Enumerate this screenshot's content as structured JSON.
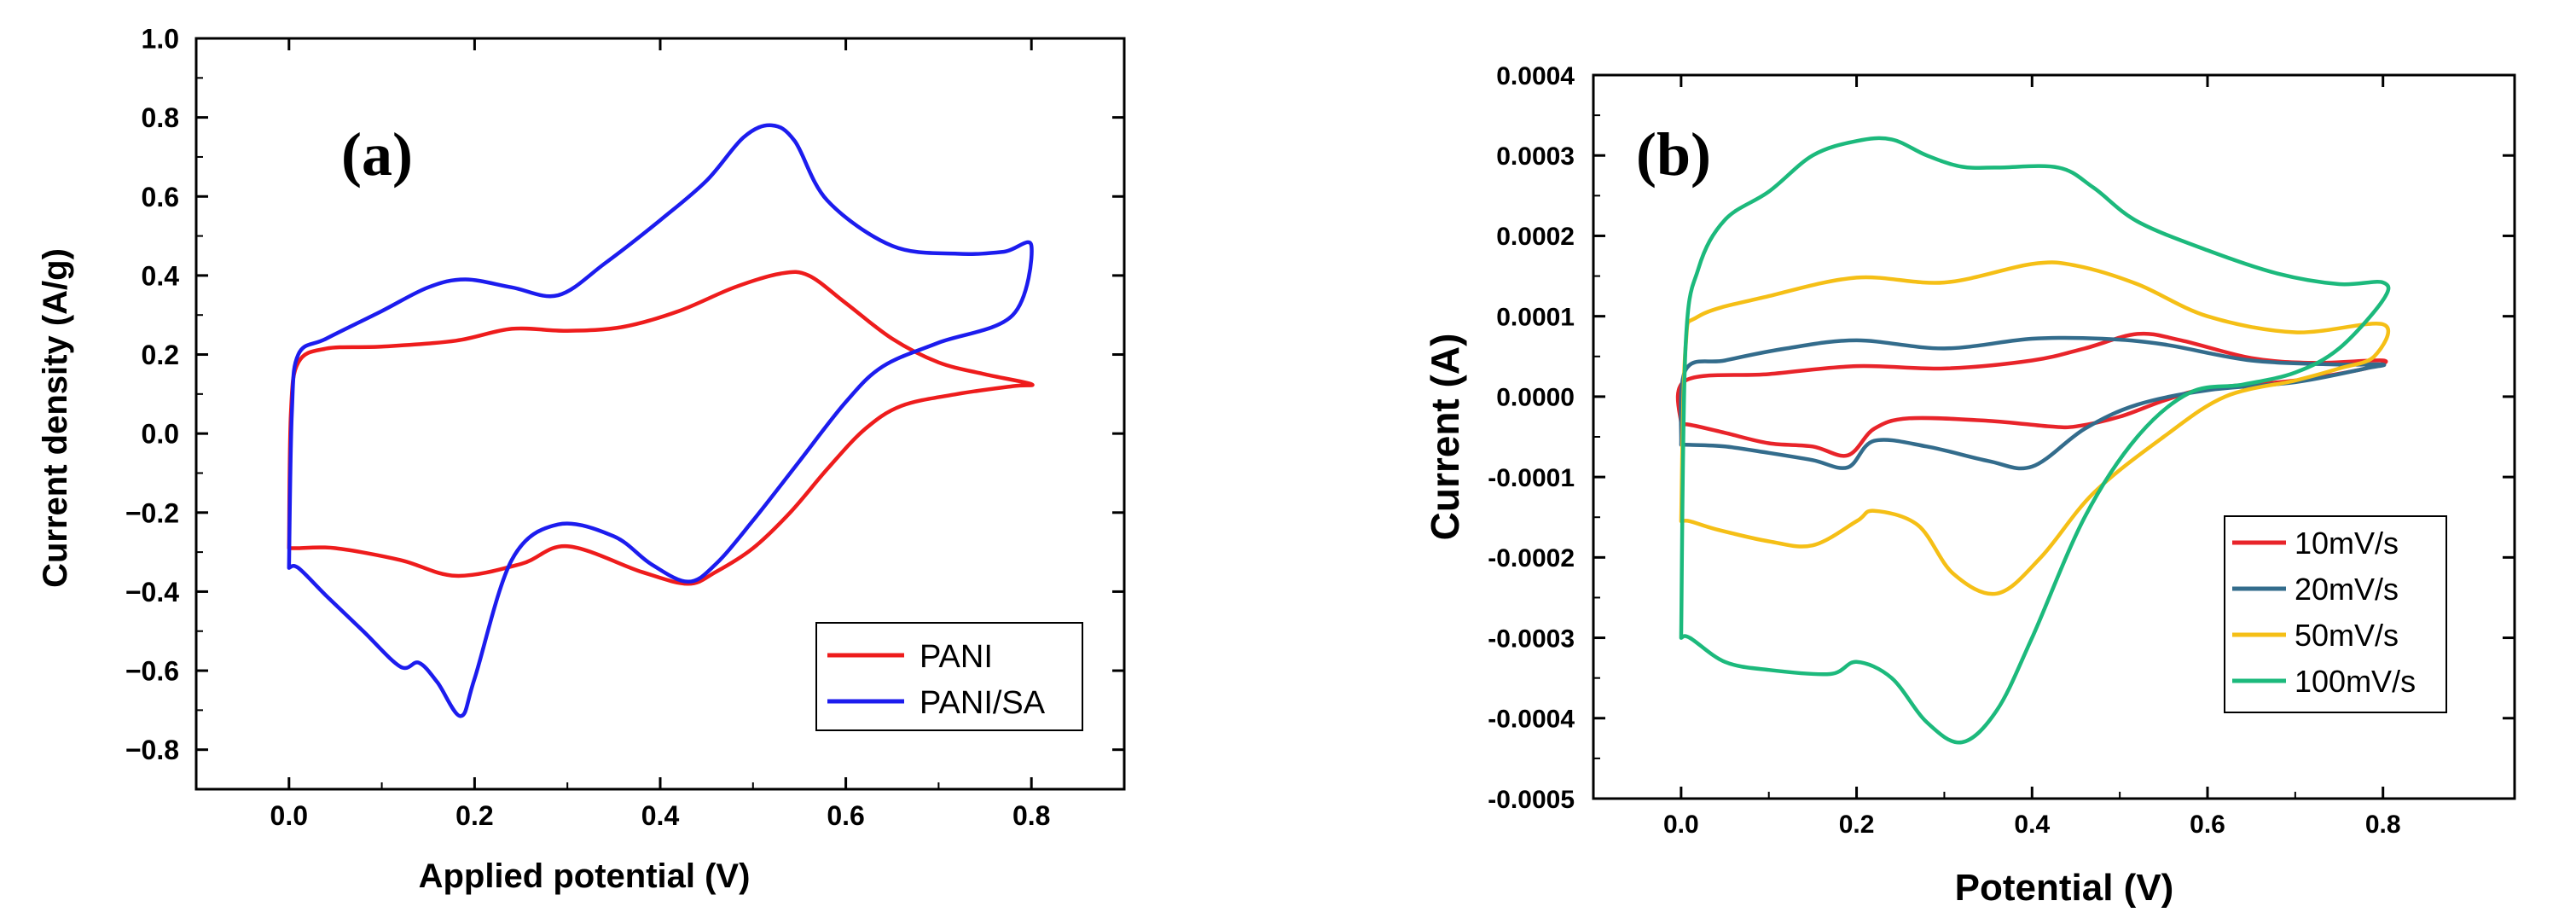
{
  "chart_data": [
    {
      "type": "line",
      "panel_label": "(a)",
      "title": "",
      "xlabel": "Applied potential (V)",
      "ylabel": "Current density (A/g)",
      "xlim": [
        -0.1,
        0.9
      ],
      "ylim": [
        -0.9,
        1.0
      ],
      "xticks": [
        0.0,
        0.2,
        0.4,
        0.6,
        0.8
      ],
      "xtick_labels": [
        "0.0",
        "0.2",
        "0.4",
        "0.6",
        "0.8"
      ],
      "yticks": [
        -0.8,
        -0.6,
        -0.4,
        -0.2,
        0.0,
        0.2,
        0.4,
        0.6,
        0.8,
        1.0
      ],
      "ytick_labels": [
        "−0.8",
        "−0.6",
        "−0.4",
        "−0.2",
        "0.0",
        "0.2",
        "0.4",
        "0.6",
        "0.8",
        "1.0"
      ],
      "legend_position": "bottom-right",
      "grid": false,
      "series": [
        {
          "name": "PANI",
          "color": "#ee1c1c",
          "x": [
            0.0,
            0.002,
            0.01,
            0.04,
            0.1,
            0.18,
            0.24,
            0.3,
            0.36,
            0.42,
            0.48,
            0.53,
            0.56,
            0.6,
            0.65,
            0.7,
            0.75,
            0.8,
            0.78,
            0.72,
            0.66,
            0.62,
            0.58,
            0.54,
            0.5,
            0.46,
            0.43,
            0.38,
            0.3,
            0.25,
            0.18,
            0.12,
            0.05,
            0.01,
            0.0
          ],
          "y": [
            -0.29,
            0.05,
            0.18,
            0.215,
            0.22,
            0.235,
            0.265,
            0.26,
            0.27,
            0.31,
            0.37,
            0.405,
            0.4,
            0.33,
            0.24,
            0.18,
            0.15,
            0.125,
            0.12,
            0.1,
            0.07,
            0.01,
            -0.09,
            -0.2,
            -0.29,
            -0.35,
            -0.38,
            -0.35,
            -0.285,
            -0.33,
            -0.36,
            -0.32,
            -0.29,
            -0.29,
            -0.29
          ]
        },
        {
          "name": "PANI/SA",
          "color": "#1c1cee",
          "x": [
            0.0,
            0.003,
            0.01,
            0.04,
            0.1,
            0.15,
            0.19,
            0.24,
            0.29,
            0.34,
            0.4,
            0.45,
            0.49,
            0.52,
            0.545,
            0.58,
            0.65,
            0.72,
            0.77,
            0.8,
            0.78,
            0.7,
            0.64,
            0.6,
            0.55,
            0.5,
            0.46,
            0.43,
            0.39,
            0.35,
            0.29,
            0.24,
            0.2,
            0.185,
            0.16,
            0.14,
            0.12,
            0.08,
            0.04,
            0.01,
            0.0
          ],
          "y": [
            -0.34,
            0.05,
            0.2,
            0.24,
            0.31,
            0.37,
            0.39,
            0.37,
            0.35,
            0.43,
            0.54,
            0.64,
            0.75,
            0.78,
            0.74,
            0.59,
            0.475,
            0.455,
            0.46,
            0.475,
            0.3,
            0.23,
            0.17,
            0.08,
            -0.07,
            -0.22,
            -0.33,
            -0.375,
            -0.33,
            -0.26,
            -0.23,
            -0.32,
            -0.62,
            -0.715,
            -0.63,
            -0.58,
            -0.59,
            -0.5,
            -0.41,
            -0.34,
            -0.34
          ]
        }
      ]
    },
    {
      "type": "line",
      "panel_label": "(b)",
      "title": "",
      "xlabel": "Potential (V)",
      "ylabel": "Current (A)",
      "xlim": [
        -0.1,
        0.95
      ],
      "ylim": [
        -0.0005,
        0.0004
      ],
      "xticks": [
        0.0,
        0.2,
        0.4,
        0.6,
        0.8
      ],
      "xtick_labels": [
        "0.0",
        "0.2",
        "0.4",
        "0.6",
        "0.8"
      ],
      "yticks": [
        -0.0005,
        -0.0004,
        -0.0003,
        -0.0002,
        -0.0001,
        0.0,
        0.0001,
        0.0002,
        0.0003,
        0.0004
      ],
      "ytick_labels": [
        "-0.0005",
        "-0.0004",
        "-0.0003",
        "-0.0002",
        "-0.0001",
        "0.0000",
        "0.0001",
        "0.0002",
        "0.0003",
        "0.0004"
      ],
      "legend_position": "bottom-right",
      "grid": false,
      "series": [
        {
          "name": "10mV/s",
          "color": "#e8242a",
          "x": [
            0.0,
            0.005,
            0.1,
            0.2,
            0.3,
            0.4,
            0.46,
            0.52,
            0.57,
            0.65,
            0.72,
            0.8,
            0.78,
            0.7,
            0.6,
            0.55,
            0.5,
            0.45,
            0.42,
            0.35,
            0.26,
            0.22,
            0.19,
            0.15,
            0.1,
            0.05,
            0.01,
            0.0
          ],
          "y": [
            -3.5e-05,
            2e-05,
            2.8e-05,
            3.8e-05,
            3.5e-05,
            4.5e-05,
            6e-05,
            7.8e-05,
            7e-05,
            4.8e-05,
            4.2e-05,
            4.5e-05,
            3.5e-05,
            2e-05,
            1e-05,
            -5e-06,
            -2.5e-05,
            -3.7e-05,
            -3.7e-05,
            -3e-05,
            -2.7e-05,
            -4e-05,
            -7.3e-05,
            -6.2e-05,
            -5.8e-05,
            -4.5e-05,
            -3.5e-05,
            -3.5e-05
          ]
        },
        {
          "name": "20mV/s",
          "color": "#336c8c",
          "x": [
            0.0,
            0.005,
            0.05,
            0.12,
            0.2,
            0.3,
            0.4,
            0.48,
            0.55,
            0.65,
            0.75,
            0.8,
            0.78,
            0.7,
            0.6,
            0.52,
            0.46,
            0.4,
            0.35,
            0.28,
            0.22,
            0.19,
            0.15,
            0.1,
            0.05,
            0.01,
            0.0
          ],
          "y": [
            -6e-05,
            3.3e-05,
            4.5e-05,
            6e-05,
            7e-05,
            6e-05,
            7.2e-05,
            7.2e-05,
            6.5e-05,
            4.5e-05,
            4e-05,
            4e-05,
            3.5e-05,
            1.8e-05,
            8e-06,
            -1e-05,
            -4e-05,
            -8.7e-05,
            -8e-05,
            -6.2e-05,
            -5.5e-05,
            -8.8e-05,
            -7.9e-05,
            -7e-05,
            -6.2e-05,
            -6e-05,
            -6e-05
          ]
        },
        {
          "name": "50mV/s",
          "color": "#f5bf16",
          "x": [
            0.0,
            0.005,
            0.02,
            0.1,
            0.2,
            0.3,
            0.4,
            0.45,
            0.52,
            0.6,
            0.7,
            0.8,
            0.79,
            0.75,
            0.7,
            0.62,
            0.55,
            0.47,
            0.41,
            0.36,
            0.31,
            0.27,
            0.22,
            0.2,
            0.15,
            0.1,
            0.04,
            0.01,
            0.0
          ],
          "y": [
            -0.000155,
            6e-05,
            0.0001,
            0.000125,
            0.000148,
            0.000142,
            0.000165,
            0.000163,
            0.00014,
            0.0001,
            8e-05,
            9e-05,
            5e-05,
            3.5e-05,
            2e-05,
            0.0,
            -5e-05,
            -0.00012,
            -0.0002,
            -0.000245,
            -0.00022,
            -0.00016,
            -0.000142,
            -0.000155,
            -0.000185,
            -0.00018,
            -0.000165,
            -0.000155,
            -0.000155
          ]
        },
        {
          "name": "100mV/s",
          "color": "#1cb97c",
          "x": [
            0.0,
            0.005,
            0.02,
            0.05,
            0.1,
            0.15,
            0.2,
            0.24,
            0.28,
            0.32,
            0.36,
            0.43,
            0.47,
            0.52,
            0.6,
            0.68,
            0.75,
            0.8,
            0.8,
            0.75,
            0.7,
            0.64,
            0.58,
            0.52,
            0.46,
            0.4,
            0.36,
            0.32,
            0.28,
            0.24,
            0.2,
            0.17,
            0.1,
            0.05,
            0.01,
            0.0
          ],
          "y": [
            -0.0003,
            6e-05,
            0.00016,
            0.00022,
            0.000255,
            0.0003,
            0.000318,
            0.00032,
            0.0003,
            0.000286,
            0.000285,
            0.000285,
            0.00026,
            0.000218,
            0.000182,
            0.000153,
            0.00014,
            0.000142,
            0.00012,
            6e-05,
            3e-05,
            1.5e-05,
            5e-06,
            -5e-05,
            -0.00015,
            -0.0003,
            -0.00039,
            -0.00043,
            -0.000405,
            -0.00035,
            -0.00033,
            -0.000345,
            -0.00034,
            -0.00033,
            -0.0003,
            -0.0003
          ]
        }
      ]
    }
  ]
}
